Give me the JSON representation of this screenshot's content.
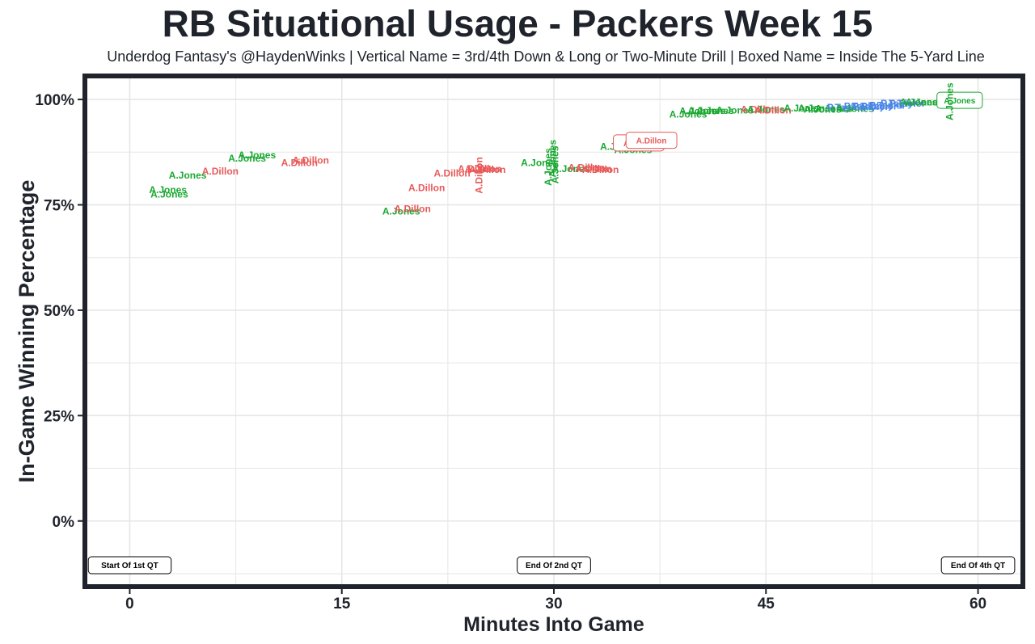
{
  "header": {
    "title": "RB Situational Usage - Packers Week 15",
    "subtitle": "Underdog Fantasy's @HaydenWinks | Vertical Name = 3rd/4th Down & Long or Two-Minute Drill | Boxed Name = Inside The 5-Yard Line"
  },
  "colors": {
    "A.Jones": "#1aa832",
    "A.Dillon": "#e85a5a",
    "P.Taylor": "#4a86e8",
    "frame": "#1f232b",
    "grid": "#e6e6e6"
  },
  "chart_data": {
    "type": "scatter",
    "title": "RB Situational Usage - Packers Week 15",
    "subtitle": "Underdog Fantasy's @HaydenWinks | Vertical Name = 3rd/4th Down & Long or Two-Minute Drill | Boxed Name = Inside The 5-Yard Line",
    "xlabel": "Minutes Into Game",
    "ylabel": "In-Game Winning Percentage",
    "xlim": [
      -3,
      63
    ],
    "ylim": [
      -15,
      105
    ],
    "xticks": [
      0,
      15,
      30,
      45,
      60
    ],
    "xtick_labels": [
      "0",
      "15",
      "30",
      "45",
      "60"
    ],
    "yticks": [
      0,
      25,
      50,
      75,
      100
    ],
    "ytick_labels": [
      "0%",
      "25%",
      "50%",
      "75%",
      "100%"
    ],
    "grid": true,
    "quarter_labels": [
      {
        "x": 0,
        "label": "Start Of 1st QT"
      },
      {
        "x": 30,
        "label": "End Of 2nd QT"
      },
      {
        "x": 60,
        "label": "End Of 4th QT"
      }
    ],
    "points": [
      {
        "x": 2.7,
        "y": 78.5,
        "name": "A.Jones",
        "style": "normal"
      },
      {
        "x": 2.8,
        "y": 77.5,
        "name": "A.Jones",
        "style": "normal"
      },
      {
        "x": 4.1,
        "y": 82.0,
        "name": "A.Jones",
        "style": "normal"
      },
      {
        "x": 6.4,
        "y": 83.0,
        "name": "A.Dillon",
        "style": "normal"
      },
      {
        "x": 8.3,
        "y": 86.0,
        "name": "A.Jones",
        "style": "normal"
      },
      {
        "x": 9.0,
        "y": 86.8,
        "name": "A.Jones",
        "style": "normal"
      },
      {
        "x": 12.0,
        "y": 85.0,
        "name": "A.Dillon",
        "style": "normal"
      },
      {
        "x": 12.8,
        "y": 85.5,
        "name": "A.Dillon",
        "style": "normal"
      },
      {
        "x": 19.2,
        "y": 73.5,
        "name": "A.Jones",
        "style": "normal"
      },
      {
        "x": 20.0,
        "y": 74.0,
        "name": "A.Dillon",
        "style": "normal"
      },
      {
        "x": 21.0,
        "y": 79.0,
        "name": "A.Dillon",
        "style": "normal"
      },
      {
        "x": 22.8,
        "y": 82.5,
        "name": "A.Dillon",
        "style": "normal"
      },
      {
        "x": 24.5,
        "y": 83.5,
        "name": "A.Dillon",
        "style": "normal"
      },
      {
        "x": 24.7,
        "y": 82.0,
        "name": "A.Dillon",
        "style": "vertical"
      },
      {
        "x": 25.0,
        "y": 83.5,
        "name": "A.Dillon",
        "style": "normal"
      },
      {
        "x": 25.3,
        "y": 83.3,
        "name": "A.Dillon",
        "style": "normal"
      },
      {
        "x": 29.0,
        "y": 85.0,
        "name": "A.Jones",
        "style": "normal"
      },
      {
        "x": 29.6,
        "y": 84.0,
        "name": "A.Jones",
        "style": "vertical"
      },
      {
        "x": 29.9,
        "y": 86.0,
        "name": "A.Jones",
        "style": "vertical"
      },
      {
        "x": 30.1,
        "y": 84.5,
        "name": "A.Jones",
        "style": "vertical"
      },
      {
        "x": 31.2,
        "y": 83.5,
        "name": "A.Jones",
        "style": "normal"
      },
      {
        "x": 32.3,
        "y": 83.8,
        "name": "A.Dillon",
        "style": "normal"
      },
      {
        "x": 32.8,
        "y": 83.5,
        "name": "A.Dillon",
        "style": "normal"
      },
      {
        "x": 33.3,
        "y": 83.3,
        "name": "A.Dillon",
        "style": "normal"
      },
      {
        "x": 34.6,
        "y": 88.8,
        "name": "A.Jones",
        "style": "normal"
      },
      {
        "x": 35.6,
        "y": 88.0,
        "name": "A.Jones",
        "style": "normal"
      },
      {
        "x": 35.7,
        "y": 88.5,
        "name": "A.Jones",
        "style": "normal"
      },
      {
        "x": 36.0,
        "y": 89.7,
        "name": "A.Dillon",
        "style": "boxed"
      },
      {
        "x": 36.9,
        "y": 90.3,
        "name": "A.Dillon",
        "style": "boxed"
      },
      {
        "x": 39.5,
        "y": 96.5,
        "name": "A.Jones",
        "style": "normal"
      },
      {
        "x": 40.2,
        "y": 97.2,
        "name": "A.Jones",
        "style": "normal"
      },
      {
        "x": 40.8,
        "y": 97.3,
        "name": "A.Jones",
        "style": "normal"
      },
      {
        "x": 41.4,
        "y": 97.3,
        "name": "A.Jones",
        "style": "normal"
      },
      {
        "x": 42.8,
        "y": 97.4,
        "name": "A.Jones",
        "style": "normal"
      },
      {
        "x": 44.5,
        "y": 97.6,
        "name": "A.Dillon",
        "style": "normal"
      },
      {
        "x": 45.0,
        "y": 97.6,
        "name": "A.Jones",
        "style": "normal"
      },
      {
        "x": 45.5,
        "y": 97.4,
        "name": "A.Dillon",
        "style": "normal"
      },
      {
        "x": 47.6,
        "y": 97.9,
        "name": "A.Jones",
        "style": "normal"
      },
      {
        "x": 48.6,
        "y": 97.9,
        "name": "A.Jones",
        "style": "normal"
      },
      {
        "x": 49.0,
        "y": 97.6,
        "name": "A.Jones",
        "style": "normal"
      },
      {
        "x": 49.8,
        "y": 97.8,
        "name": "A.Jones",
        "style": "normal"
      },
      {
        "x": 50.6,
        "y": 98.1,
        "name": "P.Taylor",
        "style": "normal"
      },
      {
        "x": 51.3,
        "y": 97.8,
        "name": "A.Jones",
        "style": "normal"
      },
      {
        "x": 51.8,
        "y": 98.4,
        "name": "P.Taylor",
        "style": "normal"
      },
      {
        "x": 52.4,
        "y": 98.3,
        "name": "P.Taylor",
        "style": "normal"
      },
      {
        "x": 53.0,
        "y": 98.4,
        "name": "P.Taylor",
        "style": "normal"
      },
      {
        "x": 53.6,
        "y": 98.6,
        "name": "P.Taylor",
        "style": "normal"
      },
      {
        "x": 54.4,
        "y": 99.1,
        "name": "P.Taylor",
        "style": "normal"
      },
      {
        "x": 55.0,
        "y": 99.1,
        "name": "P.Taylor",
        "style": "normal"
      },
      {
        "x": 55.8,
        "y": 99.3,
        "name": "A.Jones",
        "style": "normal"
      },
      {
        "x": 56.2,
        "y": 99.3,
        "name": "A.Jones",
        "style": "normal"
      },
      {
        "x": 58.7,
        "y": 99.8,
        "name": "A.Jones",
        "style": "boxed"
      },
      {
        "x": 58.0,
        "y": 99.5,
        "name": "A.Jones",
        "style": "vertical"
      }
    ]
  }
}
